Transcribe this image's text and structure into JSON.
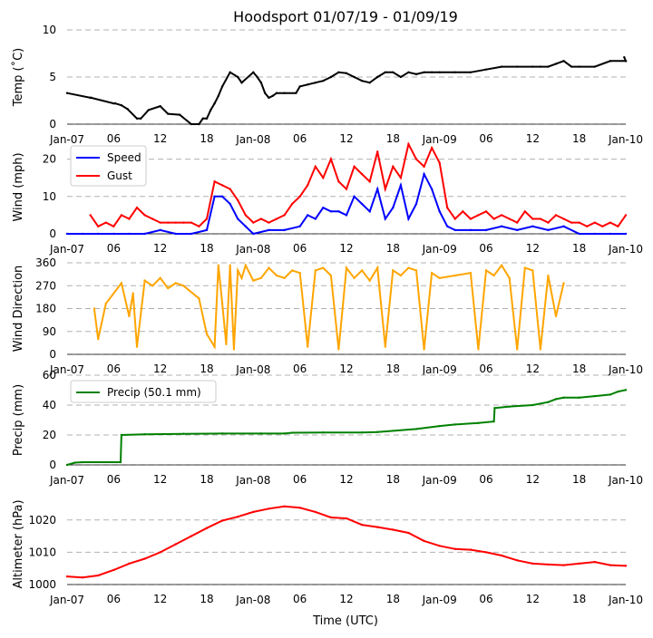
{
  "chart_data": [
    {
      "id": "temp",
      "type": "line",
      "title": "Hoodsport 01/07/19 - 01/09/19",
      "ylabel": "Temp (˚C)",
      "ylim": [
        0,
        10
      ],
      "yticks": [
        0,
        5,
        10
      ],
      "xticks": [
        "Jan-07",
        "06",
        "12",
        "18",
        "Jan-08",
        "06",
        "12",
        "18",
        "Jan-09",
        "06",
        "12",
        "18",
        "Jan-10"
      ],
      "series": [
        {
          "name": "Temperature",
          "color": "#000000",
          "x": [
            0,
            3,
            3.1,
            6,
            6.2,
            7,
            7.8,
            9,
            9.5,
            10.5,
            12,
            13,
            14.5,
            16,
            17,
            17.5,
            18,
            18.5,
            19,
            19.5,
            20,
            21,
            22,
            22.5,
            24,
            24.5,
            25,
            25.5,
            26,
            26.5,
            27,
            28,
            29.5,
            30,
            31,
            32,
            33,
            34,
            35,
            36,
            37,
            38,
            39,
            40,
            41,
            42,
            43,
            44,
            45,
            46,
            47,
            48,
            50,
            52,
            54,
            56,
            58,
            60,
            61,
            62,
            63,
            64,
            65,
            66,
            68,
            70,
            72,
            71.8,
            72
          ],
          "y": [
            3.3,
            2.8,
            2.8,
            2.2,
            2.2,
            2.0,
            1.6,
            0.6,
            0.6,
            1.5,
            1.9,
            1.1,
            1.0,
            0.0,
            0.0,
            0.6,
            0.6,
            1.5,
            2.2,
            3.0,
            4.0,
            5.5,
            5.0,
            4.4,
            5.5,
            5.0,
            4.4,
            3.3,
            2.8,
            3.0,
            3.3,
            3.3,
            3.3,
            4.0,
            4.2,
            4.4,
            4.6,
            5.0,
            5.5,
            5.4,
            5.0,
            4.6,
            4.4,
            5.0,
            5.5,
            5.5,
            5.0,
            5.5,
            5.3,
            5.5,
            5.5,
            5.5,
            5.5,
            5.5,
            5.8,
            6.1,
            6.1,
            6.1,
            6.1,
            6.1,
            6.4,
            6.7,
            6.1,
            6.1,
            6.1,
            6.7,
            6.7,
            7.1,
            6.7
          ]
        }
      ]
    },
    {
      "id": "wind",
      "type": "line",
      "ylabel": "Wind (mph)",
      "ylim": [
        0,
        25
      ],
      "yticks": [
        0,
        10,
        20
      ],
      "xticks": [
        "Jan-07",
        "06",
        "12",
        "18",
        "Jan-08",
        "06",
        "12",
        "18",
        "Jan-09",
        "06",
        "12",
        "18",
        "Jan-10"
      ],
      "legend": "top-left",
      "series": [
        {
          "name": "Speed",
          "color": "#0000ff",
          "x": [
            0,
            2,
            4,
            6,
            8,
            10,
            12,
            14,
            16,
            18,
            19,
            20,
            21,
            22,
            23,
            24,
            26,
            28,
            30,
            31,
            32,
            33,
            34,
            35,
            36,
            37,
            38,
            39,
            40,
            41,
            42,
            43,
            44,
            45,
            46,
            47,
            48,
            49,
            50,
            52,
            54,
            56,
            58,
            60,
            62,
            64,
            66,
            68,
            70,
            72
          ],
          "y": [
            0,
            0,
            0,
            0,
            0,
            0,
            1,
            0,
            0,
            1,
            10,
            10,
            8,
            4,
            2,
            0,
            1,
            1,
            2,
            5,
            4,
            7,
            6,
            6,
            5,
            10,
            8,
            6,
            12,
            4,
            7,
            13,
            4,
            8,
            16,
            12,
            6,
            2,
            1,
            1,
            1,
            2,
            1,
            2,
            1,
            2,
            0,
            0,
            0,
            0
          ]
        },
        {
          "name": "Gust",
          "color": "#ff0000",
          "x": [
            3,
            4,
            5,
            6,
            7,
            8,
            9,
            10,
            11,
            12,
            13,
            14,
            15,
            16,
            17,
            18,
            19,
            20,
            21,
            22,
            23,
            24,
            25,
            26,
            27,
            28,
            29,
            30,
            31,
            32,
            33,
            34,
            35,
            36,
            37,
            38,
            39,
            40,
            41,
            42,
            43,
            44,
            45,
            46,
            47,
            48,
            49,
            50,
            51,
            52,
            53,
            54,
            55,
            56,
            57,
            58,
            59,
            60,
            61,
            62,
            63,
            64,
            65,
            66,
            67,
            68,
            69,
            70,
            71,
            72
          ],
          "y": [
            5,
            2,
            3,
            2,
            5,
            4,
            7,
            5,
            4,
            3,
            3,
            3,
            3,
            3,
            2,
            4,
            14,
            13,
            12,
            9,
            5,
            3,
            4,
            3,
            4,
            5,
            8,
            10,
            13,
            18,
            15,
            20,
            14,
            12,
            18,
            16,
            14,
            22,
            12,
            18,
            15,
            24,
            20,
            18,
            23,
            19,
            7,
            4,
            6,
            4,
            5,
            6,
            4,
            5,
            4,
            3,
            6,
            4,
            4,
            3,
            5,
            4,
            3,
            3,
            2,
            3,
            2,
            3,
            2,
            5
          ]
        }
      ]
    },
    {
      "id": "winddir",
      "type": "line",
      "ylabel": "Wind Direction",
      "ylim": [
        0,
        360
      ],
      "yticks": [
        0,
        90,
        180,
        270,
        360
      ],
      "xticks": [
        "Jan-07",
        "06",
        "12",
        "18",
        "Jan-08",
        "06",
        "12",
        "18",
        "Jan-09",
        "06",
        "12",
        "18",
        "Jan-10"
      ],
      "series": [
        {
          "name": "Direction",
          "color": "#ffa500",
          "x": [
            3.5,
            4,
            5,
            7,
            8,
            8.5,
            9,
            10,
            11,
            12,
            13,
            14,
            15,
            17,
            18,
            19,
            19.5,
            20,
            20.5,
            21,
            21.5,
            22,
            22.5,
            23,
            24,
            25,
            26,
            27,
            28,
            29,
            30,
            31,
            32,
            33,
            34,
            35,
            36,
            37,
            38,
            39,
            40,
            41,
            42,
            43,
            44,
            45,
            46,
            47,
            48,
            50,
            52,
            53,
            54,
            55,
            56,
            57,
            58,
            59,
            60,
            61,
            62,
            63,
            64
          ],
          "y": [
            180,
            60,
            200,
            280,
            150,
            240,
            30,
            290,
            270,
            300,
            260,
            280,
            270,
            220,
            80,
            30,
            350,
            200,
            40,
            350,
            20,
            330,
            300,
            350,
            290,
            300,
            340,
            310,
            300,
            330,
            320,
            30,
            330,
            340,
            310,
            20,
            340,
            300,
            330,
            290,
            340,
            30,
            330,
            310,
            340,
            330,
            20,
            320,
            300,
            310,
            320,
            20,
            330,
            310,
            350,
            300,
            20,
            340,
            330,
            20,
            310,
            150,
            280
          ]
        }
      ]
    },
    {
      "id": "precip",
      "type": "line",
      "ylabel": "Precip (mm)",
      "ylim": [
        0,
        60
      ],
      "yticks": [
        0,
        20,
        40,
        60
      ],
      "xticks": [
        "Jan-07",
        "06",
        "12",
        "18",
        "Jan-08",
        "06",
        "12",
        "18",
        "Jan-09",
        "06",
        "12",
        "18",
        "Jan-10"
      ],
      "legend": "top-left",
      "series": [
        {
          "name": "Precip (50.1 mm)",
          "color": "#008000",
          "x": [
            0,
            1,
            2,
            6.9,
            7,
            10,
            15,
            20,
            25,
            28,
            29,
            33,
            38,
            40,
            45,
            48,
            50,
            53,
            55,
            55.1,
            57,
            60,
            62,
            63,
            64,
            66,
            68,
            70,
            71,
            72
          ],
          "y": [
            0,
            1.5,
            1.8,
            1.8,
            20,
            20.5,
            20.8,
            21,
            21,
            21,
            21.5,
            21.7,
            21.7,
            22,
            24,
            26,
            27,
            28,
            29,
            38,
            39,
            40,
            42,
            44,
            45,
            45,
            46,
            47,
            49,
            50.1
          ]
        }
      ]
    },
    {
      "id": "altimeter",
      "type": "line",
      "ylabel": "Altimeter (hPa)",
      "xlabel": "Time (UTC)",
      "ylim": [
        1000,
        1025
      ],
      "yticks": [
        1000,
        1010,
        1020
      ],
      "xticks": [
        "Jan-07",
        "06",
        "12",
        "18",
        "Jan-08",
        "06",
        "12",
        "18",
        "Jan-09",
        "06",
        "12",
        "18",
        "Jan-10"
      ],
      "series": [
        {
          "name": "Altimeter",
          "color": "#ff0000",
          "x": [
            0,
            2,
            4,
            6,
            8,
            10,
            12,
            14,
            16,
            18,
            20,
            22,
            24,
            26,
            28,
            30,
            32,
            34,
            36,
            38,
            40,
            42,
            44,
            46,
            48,
            50,
            52,
            54,
            56,
            58,
            60,
            62,
            64,
            66,
            68,
            70,
            72
          ],
          "y": [
            1002.5,
            1002.2,
            1002.8,
            1004.5,
            1006.5,
            1008,
            1010,
            1012.5,
            1015,
            1017.5,
            1019.8,
            1021,
            1022.5,
            1023.5,
            1024.2,
            1023.8,
            1022.5,
            1020.8,
            1020.5,
            1018.5,
            1017.8,
            1017,
            1016,
            1013.5,
            1012,
            1011,
            1010.8,
            1010,
            1009,
            1007.5,
            1006.5,
            1006.2,
            1006,
            1006.5,
            1007,
            1006,
            1005.8
          ]
        }
      ]
    }
  ]
}
